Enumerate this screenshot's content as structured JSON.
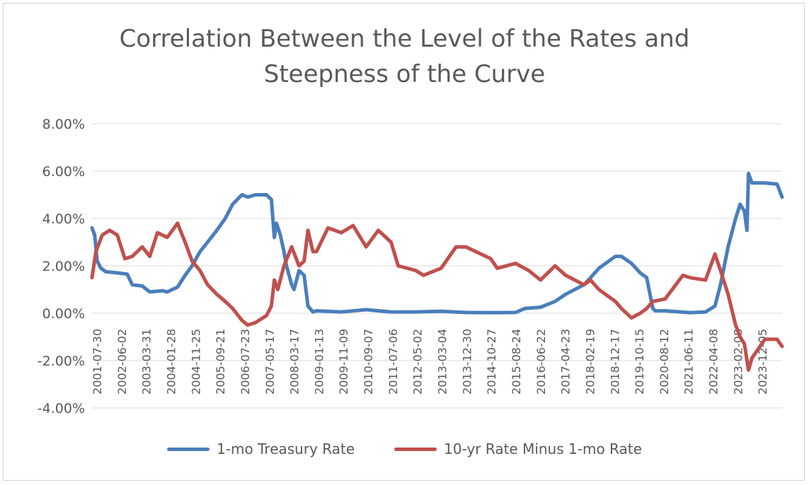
{
  "chart_data": {
    "type": "line",
    "title": "Correlation Between the Level of the Rates and Steepness of the Curve",
    "title_lines": [
      "Correlation Between the Level of the Rates and",
      "Steepness of the Curve"
    ],
    "xlabel": "",
    "ylabel": "",
    "ylim": [
      -4,
      8
    ],
    "ytick_values": [
      -4,
      -2,
      0,
      2,
      4,
      6,
      8
    ],
    "ytick_labels": [
      "-4.00%",
      "-2.00%",
      "0.00%",
      "2.00%",
      "4.00%",
      "6.00%",
      "8.00%"
    ],
    "grid": true,
    "legend_position": "bottom",
    "x_tick_labels": [
      "2001-07-30",
      "2002-06-02",
      "2003-03-31",
      "2004-01-28",
      "2004-11-25",
      "2005-09-21",
      "2006-07-23",
      "2007-05-17",
      "2008-03-17",
      "2009-01-13",
      "2009-11-09",
      "2010-09-07",
      "2011-07-06",
      "2012-05-02",
      "2013-03-04",
      "2013-12-30",
      "2014-10-27",
      "2015-08-24",
      "2016-06-22",
      "2017-04-23",
      "2018-02-19",
      "2018-12-17",
      "2019-10-15",
      "2020-08-12",
      "2021-06-11",
      "2022-04-08",
      "2023-02-08",
      "2023-12-05"
    ],
    "x_start": "2001-07-30",
    "x_end": "2024-07-01",
    "series": [
      {
        "name": "1-mo Treasury Rate",
        "color": "#4a7ebb",
        "points": [
          [
            "2001-07-30",
            3.6
          ],
          [
            "2001-09-01",
            3.3
          ],
          [
            "2001-10-01",
            2.2
          ],
          [
            "2001-11-15",
            1.9
          ],
          [
            "2002-01-15",
            1.75
          ],
          [
            "2002-06-02",
            1.7
          ],
          [
            "2002-10-01",
            1.65
          ],
          [
            "2002-12-01",
            1.2
          ],
          [
            "2003-03-31",
            1.15
          ],
          [
            "2003-07-01",
            0.9
          ],
          [
            "2003-12-01",
            0.95
          ],
          [
            "2004-01-28",
            0.9
          ],
          [
            "2004-06-01",
            1.1
          ],
          [
            "2004-09-01",
            1.6
          ],
          [
            "2004-11-25",
            2.0
          ],
          [
            "2005-03-01",
            2.6
          ],
          [
            "2005-06-01",
            3.0
          ],
          [
            "2005-09-21",
            3.5
          ],
          [
            "2006-01-01",
            4.0
          ],
          [
            "2006-04-01",
            4.6
          ],
          [
            "2006-07-23",
            5.0
          ],
          [
            "2006-10-01",
            4.9
          ],
          [
            "2007-01-01",
            5.0
          ],
          [
            "2007-05-17",
            5.0
          ],
          [
            "2007-07-15",
            4.8
          ],
          [
            "2007-08-20",
            3.2
          ],
          [
            "2007-09-15",
            3.8
          ],
          [
            "2007-11-01",
            3.3
          ],
          [
            "2007-12-15",
            2.6
          ],
          [
            "2008-01-15",
            2.0
          ],
          [
            "2008-03-17",
            1.2
          ],
          [
            "2008-04-15",
            1.0
          ],
          [
            "2008-06-15",
            1.8
          ],
          [
            "2008-08-15",
            1.6
          ],
          [
            "2008-10-01",
            0.3
          ],
          [
            "2008-12-01",
            0.05
          ],
          [
            "2009-01-13",
            0.1
          ],
          [
            "2009-11-09",
            0.05
          ],
          [
            "2010-09-07",
            0.15
          ],
          [
            "2011-07-06",
            0.05
          ],
          [
            "2012-05-02",
            0.05
          ],
          [
            "2013-03-04",
            0.08
          ],
          [
            "2013-12-30",
            0.03
          ],
          [
            "2014-10-27",
            0.02
          ],
          [
            "2015-08-24",
            0.03
          ],
          [
            "2015-12-15",
            0.2
          ],
          [
            "2016-06-22",
            0.25
          ],
          [
            "2016-12-15",
            0.5
          ],
          [
            "2017-04-23",
            0.8
          ],
          [
            "2017-12-01",
            1.2
          ],
          [
            "2018-02-19",
            1.5
          ],
          [
            "2018-06-01",
            1.9
          ],
          [
            "2018-12-17",
            2.4
          ],
          [
            "2019-03-01",
            2.4
          ],
          [
            "2019-07-01",
            2.1
          ],
          [
            "2019-10-15",
            1.7
          ],
          [
            "2020-01-01",
            1.5
          ],
          [
            "2020-03-15",
            0.2
          ],
          [
            "2020-04-15",
            0.1
          ],
          [
            "2020-08-12",
            0.1
          ],
          [
            "2021-06-11",
            0.02
          ],
          [
            "2021-12-15",
            0.05
          ],
          [
            "2022-04-08",
            0.3
          ],
          [
            "2022-06-15",
            1.2
          ],
          [
            "2022-09-15",
            2.8
          ],
          [
            "2022-12-15",
            4.0
          ],
          [
            "2023-02-08",
            4.6
          ],
          [
            "2023-04-01",
            4.3
          ],
          [
            "2023-05-01",
            3.5
          ],
          [
            "2023-05-20",
            5.9
          ],
          [
            "2023-07-01",
            5.5
          ],
          [
            "2023-12-05",
            5.5
          ],
          [
            "2024-05-01",
            5.45
          ],
          [
            "2024-07-01",
            4.9
          ]
        ]
      },
      {
        "name": "10-yr Rate Minus 1-mo Rate",
        "color": "#c0504d",
        "points": [
          [
            "2001-07-30",
            1.5
          ],
          [
            "2001-09-15",
            2.6
          ],
          [
            "2001-12-01",
            3.3
          ],
          [
            "2002-03-01",
            3.5
          ],
          [
            "2002-06-02",
            3.3
          ],
          [
            "2002-09-01",
            2.3
          ],
          [
            "2002-12-01",
            2.4
          ],
          [
            "2003-03-31",
            2.8
          ],
          [
            "2003-07-01",
            2.4
          ],
          [
            "2003-10-01",
            3.4
          ],
          [
            "2004-01-28",
            3.2
          ],
          [
            "2004-04-01",
            3.5
          ],
          [
            "2004-06-01",
            3.8
          ],
          [
            "2004-09-01",
            3.0
          ],
          [
            "2004-11-25",
            2.2
          ],
          [
            "2005-03-01",
            1.8
          ],
          [
            "2005-06-01",
            1.2
          ],
          [
            "2005-09-21",
            0.8
          ],
          [
            "2006-01-01",
            0.5
          ],
          [
            "2006-04-01",
            0.2
          ],
          [
            "2006-07-23",
            -0.3
          ],
          [
            "2006-10-01",
            -0.5
          ],
          [
            "2007-01-01",
            -0.4
          ],
          [
            "2007-05-17",
            -0.1
          ],
          [
            "2007-07-15",
            0.3
          ],
          [
            "2007-08-20",
            1.4
          ],
          [
            "2007-10-01",
            1.0
          ],
          [
            "2007-12-15",
            2.0
          ],
          [
            "2008-03-17",
            2.8
          ],
          [
            "2008-06-15",
            2.0
          ],
          [
            "2008-08-15",
            2.2
          ],
          [
            "2008-10-01",
            3.5
          ],
          [
            "2008-12-01",
            2.6
          ],
          [
            "2009-01-13",
            2.6
          ],
          [
            "2009-06-01",
            3.6
          ],
          [
            "2009-11-09",
            3.4
          ],
          [
            "2010-04-01",
            3.7
          ],
          [
            "2010-09-07",
            2.8
          ],
          [
            "2011-02-01",
            3.5
          ],
          [
            "2011-07-06",
            3.0
          ],
          [
            "2011-10-01",
            2.0
          ],
          [
            "2012-05-02",
            1.8
          ],
          [
            "2012-08-01",
            1.6
          ],
          [
            "2013-03-04",
            1.9
          ],
          [
            "2013-09-01",
            2.8
          ],
          [
            "2013-12-30",
            2.8
          ],
          [
            "2014-10-27",
            2.3
          ],
          [
            "2015-01-15",
            1.9
          ],
          [
            "2015-08-24",
            2.1
          ],
          [
            "2016-02-01",
            1.8
          ],
          [
            "2016-06-22",
            1.4
          ],
          [
            "2016-12-15",
            2.0
          ],
          [
            "2017-04-23",
            1.6
          ],
          [
            "2017-12-01",
            1.2
          ],
          [
            "2018-02-19",
            1.4
          ],
          [
            "2018-06-01",
            1.0
          ],
          [
            "2018-12-17",
            0.5
          ],
          [
            "2019-03-01",
            0.2
          ],
          [
            "2019-07-01",
            -0.2
          ],
          [
            "2019-10-15",
            0.0
          ],
          [
            "2020-01-01",
            0.2
          ],
          [
            "2020-03-15",
            0.5
          ],
          [
            "2020-08-12",
            0.6
          ],
          [
            "2021-03-15",
            1.6
          ],
          [
            "2021-06-11",
            1.5
          ],
          [
            "2021-12-15",
            1.4
          ],
          [
            "2022-04-08",
            2.5
          ],
          [
            "2022-06-15",
            1.8
          ],
          [
            "2022-09-15",
            0.8
          ],
          [
            "2022-12-15",
            -0.5
          ],
          [
            "2023-02-08",
            -1.0
          ],
          [
            "2023-04-01",
            -1.3
          ],
          [
            "2023-05-20",
            -2.4
          ],
          [
            "2023-07-01",
            -1.9
          ],
          [
            "2023-12-05",
            -1.1
          ],
          [
            "2024-05-01",
            -1.1
          ],
          [
            "2024-07-01",
            -1.4
          ]
        ]
      }
    ]
  }
}
